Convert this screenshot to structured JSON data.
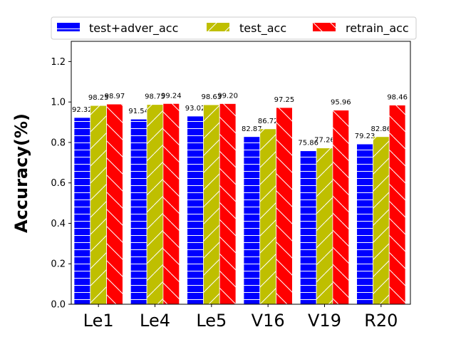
{
  "chart_data": {
    "type": "bar",
    "title": "",
    "xlabel": "",
    "ylabel": "Accuracy(%)",
    "ylim": [
      0,
      1.3
    ],
    "yticks": [
      "0.0",
      "0.2",
      "0.4",
      "0.6",
      "0.8",
      "1.0",
      "1.2"
    ],
    "categories": [
      "Le1",
      "Le4",
      "Le5",
      "V16",
      "V19",
      "R20"
    ],
    "legend_position": "top",
    "series": [
      {
        "name": "test+adver_acc",
        "color": "#0000ff",
        "hatch": "horizontal",
        "values": [
          0.9232,
          0.9154,
          0.9302,
          0.8287,
          0.7586,
          0.7923
        ],
        "labels": [
          "92.32",
          "91.54",
          "93.02",
          "82.87",
          "75.86",
          "79.23"
        ]
      },
      {
        "name": "test_acc",
        "color": "#bfbf00",
        "hatch": "forward-diagonal",
        "values": [
          0.9825,
          0.9875,
          0.9863,
          0.8672,
          0.7726,
          0.8286
        ],
        "labels": [
          "98.25",
          "98.75",
          "98.63",
          "86.72",
          "77.26",
          "82.86"
        ]
      },
      {
        "name": "retrain_acc",
        "color": "#ff0000",
        "hatch": "back-diagonal",
        "values": [
          0.9897,
          0.9924,
          0.992,
          0.9725,
          0.9596,
          0.9846
        ],
        "labels": [
          "98.97",
          "99.24",
          "99.20",
          "97.25",
          "95.96",
          "98.46"
        ]
      }
    ]
  }
}
